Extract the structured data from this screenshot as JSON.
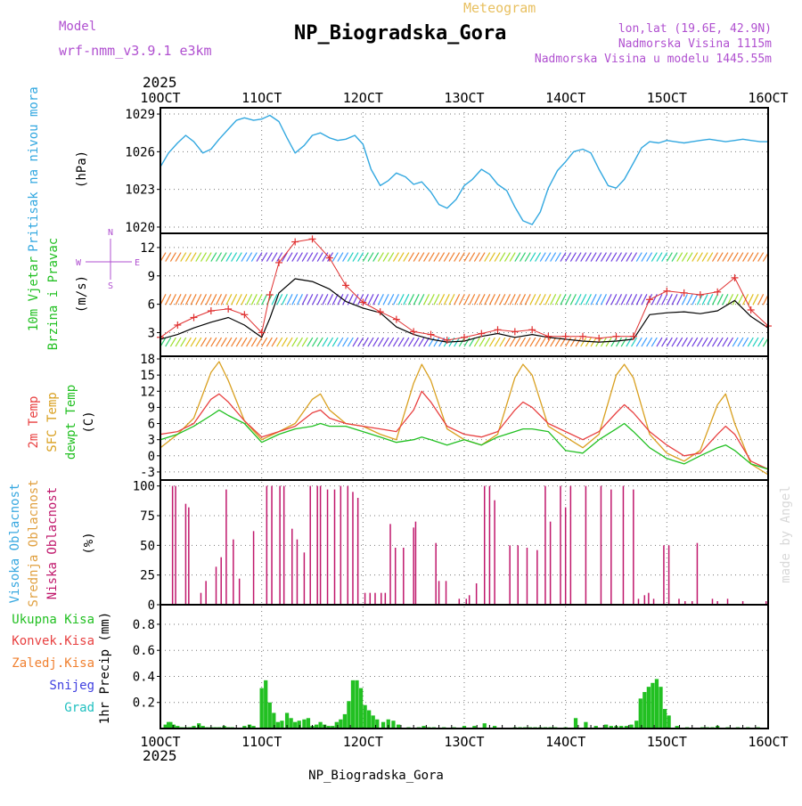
{
  "header": {
    "model_label": "Model",
    "model_name": "wrf-nmm_v3.9.1 e3km",
    "meteogram_label": "Meteogram",
    "station_title": "NP_Biogradska_Gora",
    "coords": "lon,lat (19.6E, 42.9N)",
    "elevation": "Nadmorska Visina 1115m",
    "model_elevation": "Nadmorska Visina u modelu 1445.55m",
    "year_top": "2025",
    "year_bottom": "2025",
    "footer_station": "NP_Biogradska_Gora",
    "credit": "made by Angel"
  },
  "colors": {
    "pressure": "#33a8e0",
    "gust": "#e03030",
    "mean_wind": "#000000",
    "temp2m": "#e84040",
    "sfc_temp": "#d9a020",
    "dewpoint": "#22c022",
    "low_cloud": "#c0186c",
    "mid_cloud": "#e0a040",
    "high_cloud": "#38a8e0",
    "precip": "#22c022",
    "purple_text": "#b050d0",
    "orange_text": "#e8c060",
    "grid": "#777777"
  },
  "chart_data": [
    {
      "type": "line",
      "panel": "pressure",
      "title": "Pritisak na nivou mora",
      "ylabel": "(hPa)",
      "x_ticks": [
        "10OCT",
        "11OCT",
        "12OCT",
        "13OCT",
        "14OCT",
        "15OCT",
        "16OCT"
      ],
      "x_range_days": [
        0,
        6
      ],
      "ylim": [
        1019.5,
        1029.5
      ],
      "y_ticks": [
        1020,
        1023,
        1026,
        1029
      ],
      "series": [
        {
          "name": "Pritisak na nivou mora",
          "x": [
            0,
            0.08,
            0.17,
            0.25,
            0.33,
            0.42,
            0.5,
            0.58,
            0.67,
            0.75,
            0.83,
            0.92,
            1.0,
            1.08,
            1.17,
            1.25,
            1.33,
            1.42,
            1.5,
            1.58,
            1.67,
            1.75,
            1.83,
            1.92,
            2.0,
            2.08,
            2.17,
            2.25,
            2.33,
            2.42,
            2.5,
            2.58,
            2.67,
            2.75,
            2.83,
            2.92,
            3.0,
            3.08,
            3.17,
            3.25,
            3.33,
            3.42,
            3.5,
            3.58,
            3.67,
            3.75,
            3.83,
            3.92,
            4.0,
            4.08,
            4.17,
            4.25,
            4.33,
            4.42,
            4.5,
            4.58,
            4.67,
            4.75,
            4.83,
            4.92,
            5.0,
            5.08,
            5.17,
            5.25,
            5.33,
            5.42,
            5.5,
            5.58,
            5.67,
            5.75,
            5.83,
            5.92,
            6.0
          ],
          "values": [
            1024.8,
            1025.9,
            1026.7,
            1027.3,
            1026.8,
            1025.9,
            1026.2,
            1027.0,
            1027.8,
            1028.5,
            1028.7,
            1028.5,
            1028.6,
            1028.9,
            1028.4,
            1027.1,
            1025.9,
            1026.5,
            1027.3,
            1027.5,
            1027.1,
            1026.9,
            1027.0,
            1027.3,
            1026.6,
            1024.6,
            1023.3,
            1023.7,
            1024.3,
            1024.0,
            1023.4,
            1023.6,
            1022.8,
            1021.8,
            1021.5,
            1022.2,
            1023.3,
            1023.8,
            1024.6,
            1024.2,
            1023.4,
            1022.9,
            1021.6,
            1020.5,
            1020.2,
            1021.2,
            1023.1,
            1024.5,
            1025.2,
            1026.0,
            1026.2,
            1025.9,
            1024.6,
            1023.3,
            1023.1,
            1023.8,
            1025.1,
            1026.3,
            1026.8,
            1026.7,
            1026.9,
            1026.8,
            1026.7,
            1026.8,
            1026.9,
            1027.0,
            1026.9,
            1026.8,
            1026.9,
            1027.0,
            1026.9,
            1026.8,
            1026.8
          ]
        }
      ]
    },
    {
      "type": "line",
      "panel": "wind",
      "title": "10m Vjetar",
      "subtitle": "Brzina i Pravac",
      "ylabel": "(m/s)",
      "compass": {
        "n": "N",
        "s": "S",
        "w": "W",
        "e": "E"
      },
      "ylim": [
        0.5,
        13.5
      ],
      "y_ticks": [
        3,
        6,
        9,
        12
      ],
      "direction_rows_ms": [
        2,
        6.5,
        11
      ],
      "x": [
        0,
        0.17,
        0.33,
        0.5,
        0.67,
        0.83,
        1.0,
        1.08,
        1.17,
        1.33,
        1.5,
        1.67,
        1.83,
        2.0,
        2.17,
        2.33,
        2.5,
        2.67,
        2.83,
        3.0,
        3.17,
        3.33,
        3.5,
        3.67,
        3.83,
        4.0,
        4.17,
        4.33,
        4.5,
        4.67,
        4.83,
        5.0,
        5.17,
        5.33,
        5.5,
        5.67,
        5.83,
        6.0
      ],
      "series": [
        {
          "name": "mean wind",
          "values": [
            2.3,
            2.8,
            3.5,
            4.1,
            4.6,
            3.8,
            2.5,
            4.5,
            7.2,
            8.7,
            8.4,
            7.6,
            6.3,
            5.6,
            5.1,
            3.6,
            2.8,
            2.3,
            2.0,
            2.1,
            2.6,
            2.9,
            2.5,
            2.8,
            2.5,
            2.3,
            2.1,
            2.0,
            2.1,
            2.3,
            4.9,
            5.1,
            5.2,
            5.0,
            5.3,
            6.4,
            4.7,
            3.5
          ]
        },
        {
          "name": "gust",
          "values": [
            2.5,
            3.8,
            4.6,
            5.3,
            5.5,
            4.9,
            3.0,
            7.0,
            10.4,
            12.6,
            12.9,
            10.9,
            8.0,
            6.2,
            5.2,
            4.4,
            3.1,
            2.8,
            2.2,
            2.5,
            2.9,
            3.3,
            3.1,
            3.3,
            2.6,
            2.6,
            2.6,
            2.4,
            2.6,
            2.6,
            6.5,
            7.4,
            7.2,
            7.0,
            7.3,
            8.8,
            5.4,
            3.7
          ]
        }
      ]
    },
    {
      "type": "line",
      "panel": "temperature",
      "labels": [
        "2m Temp",
        "SFC Temp",
        "dewpt Temp"
      ],
      "ylabel": "(C)",
      "ylim": [
        -4.5,
        18.5
      ],
      "y_ticks": [
        -3,
        0,
        3,
        6,
        9,
        12,
        15,
        18
      ],
      "x": [
        0,
        0.17,
        0.33,
        0.5,
        0.58,
        0.67,
        0.83,
        1.0,
        1.17,
        1.33,
        1.5,
        1.58,
        1.67,
        1.83,
        2.0,
        2.17,
        2.33,
        2.5,
        2.58,
        2.67,
        2.83,
        3.0,
        3.17,
        3.33,
        3.5,
        3.58,
        3.67,
        3.83,
        4.0,
        4.17,
        4.33,
        4.5,
        4.58,
        4.67,
        4.83,
        5.0,
        5.17,
        5.33,
        5.5,
        5.58,
        5.67,
        5.83,
        6.0
      ],
      "series": [
        {
          "name": "2m Temp",
          "values": [
            4.0,
            4.5,
            6.0,
            10.5,
            11.5,
            10.0,
            6.5,
            3.5,
            4.5,
            5.5,
            8.0,
            8.5,
            7.0,
            6.0,
            5.5,
            5.0,
            4.5,
            8.5,
            12.0,
            10.0,
            5.5,
            4.0,
            3.5,
            4.5,
            8.5,
            10.0,
            9.0,
            6.0,
            4.5,
            3.0,
            4.5,
            8.0,
            9.5,
            8.0,
            4.5,
            2.0,
            0.0,
            0.5,
            4.0,
            5.5,
            4.0,
            -1.0,
            -2.5
          ]
        },
        {
          "name": "SFC Temp",
          "values": [
            1.5,
            4.0,
            7.0,
            15.5,
            17.5,
            14.0,
            6.5,
            3.0,
            4.5,
            6.0,
            10.5,
            11.5,
            8.5,
            6.0,
            5.5,
            4.0,
            3.0,
            13.5,
            17.0,
            14.0,
            5.0,
            3.0,
            2.0,
            4.0,
            14.5,
            17.0,
            15.0,
            5.5,
            3.5,
            1.5,
            4.0,
            15.0,
            17.0,
            14.5,
            4.0,
            0.5,
            -1.0,
            1.0,
            9.5,
            11.5,
            6.0,
            -1.5,
            -3.5
          ]
        },
        {
          "name": "dewpt Temp",
          "values": [
            3.0,
            4.0,
            5.5,
            7.5,
            8.5,
            7.5,
            6.0,
            2.5,
            4.0,
            5.0,
            5.5,
            6.0,
            5.5,
            5.5,
            4.5,
            3.5,
            2.5,
            3.0,
            3.5,
            3.0,
            2.0,
            3.0,
            2.0,
            3.5,
            4.5,
            5.0,
            5.0,
            4.5,
            1.0,
            0.5,
            3.0,
            5.0,
            6.0,
            4.5,
            1.5,
            -0.5,
            -1.5,
            0.0,
            1.5,
            2.0,
            1.0,
            -1.5,
            -2.5
          ]
        }
      ]
    },
    {
      "type": "bar",
      "panel": "clouds",
      "labels": [
        "Visoka Oblacnost",
        "Srednja Oblacnost",
        "Niska Oblacnost"
      ],
      "ylabel": "(%)",
      "ylim": [
        0,
        105
      ],
      "y_ticks": [
        0,
        25,
        50,
        75,
        100
      ],
      "series": [
        {
          "name": "Niska Oblacnost",
          "x": [
            0.12,
            0.15,
            0.25,
            0.28,
            0.4,
            0.45,
            0.55,
            0.6,
            0.65,
            0.72,
            0.78,
            0.92,
            1.05,
            1.1,
            1.18,
            1.22,
            1.3,
            1.35,
            1.42,
            1.48,
            1.55,
            1.58,
            1.65,
            1.72,
            1.78,
            1.85,
            1.9,
            1.95,
            2.02,
            2.07,
            2.12,
            2.18,
            2.22,
            2.27,
            2.32,
            2.4,
            2.5,
            2.52,
            2.72,
            2.75,
            2.82,
            2.95,
            3.02,
            3.05,
            3.12,
            3.2,
            3.25,
            3.3,
            3.45,
            3.53,
            3.62,
            3.72,
            3.8,
            3.85,
            3.95,
            4.0,
            4.05,
            4.2,
            4.35,
            4.45,
            4.57,
            4.67,
            4.72,
            4.78,
            4.82,
            4.87,
            4.97,
            5.02,
            5.12,
            5.18,
            5.25,
            5.3,
            5.45,
            5.5,
            5.6,
            5.75,
            5.98
          ],
          "values": [
            100,
            100,
            85,
            82,
            10,
            20,
            32,
            40,
            97,
            55,
            22,
            62,
            100,
            100,
            100,
            100,
            64,
            55,
            44,
            100,
            100,
            100,
            97,
            97,
            100,
            100,
            95,
            90,
            10,
            10,
            10,
            10,
            10,
            68,
            48,
            48,
            65,
            70,
            52,
            20,
            20,
            5,
            5,
            8,
            18,
            100,
            100,
            88,
            50,
            50,
            48,
            46,
            100,
            70,
            100,
            82,
            100,
            100,
            100,
            97,
            100,
            97,
            5,
            8,
            10,
            5,
            50,
            50,
            5,
            3,
            3,
            52,
            5,
            3,
            5,
            3,
            3
          ]
        }
      ]
    },
    {
      "type": "bar",
      "panel": "precip",
      "labels": [
        "Ukupna Kisa",
        "Konvek.Kisa",
        "Zaledj.Kisa",
        "Snijeg",
        "Grad"
      ],
      "ylabel": "1hr Precip (mm)",
      "ylim": [
        0,
        0.95
      ],
      "y_ticks": [
        0.2,
        0.4,
        0.6,
        0.8
      ],
      "series": [
        {
          "name": "Ukupna Kisa",
          "x": [
            0.05,
            0.08,
            0.1,
            0.13,
            0.17,
            0.21,
            0.25,
            0.29,
            0.33,
            0.38,
            0.42,
            0.46,
            0.5,
            0.54,
            0.58,
            0.63,
            0.67,
            0.71,
            0.75,
            0.79,
            0.83,
            0.88,
            0.92,
            0.96,
            1.0,
            1.04,
            1.08,
            1.12,
            1.16,
            1.2,
            1.25,
            1.29,
            1.33,
            1.37,
            1.42,
            1.46,
            1.5,
            1.54,
            1.58,
            1.62,
            1.66,
            1.7,
            1.74,
            1.78,
            1.82,
            1.86,
            1.9,
            1.94,
            1.98,
            2.02,
            2.06,
            2.1,
            2.14,
            2.2,
            2.25,
            2.3,
            2.35,
            2.45,
            2.55,
            2.6,
            2.65,
            2.7,
            2.8,
            2.9,
            3.0,
            3.1,
            3.2,
            3.3,
            3.5,
            3.55,
            3.6,
            3.65,
            3.7,
            3.75,
            3.8,
            3.85,
            3.9,
            4.0,
            4.1,
            4.2,
            4.3,
            4.4,
            4.45,
            4.5,
            4.55,
            4.6,
            4.65,
            4.7,
            4.74,
            4.78,
            4.82,
            4.86,
            4.9,
            4.94,
            4.98,
            5.02,
            5.1,
            5.2,
            5.35,
            5.4,
            5.45,
            5.5,
            5.6,
            5.7,
            5.8,
            5.9
          ],
          "values": [
            0.03,
            0.05,
            0.05,
            0.03,
            0.02,
            0.01,
            0.01,
            0.01,
            0.02,
            0.04,
            0.02,
            0.01,
            0.01,
            0.01,
            0.01,
            0.02,
            0.01,
            0.01,
            0.0,
            0.0,
            0.02,
            0.03,
            0.02,
            0.0,
            0.31,
            0.37,
            0.2,
            0.12,
            0.05,
            0.06,
            0.12,
            0.08,
            0.05,
            0.06,
            0.07,
            0.08,
            0.02,
            0.03,
            0.05,
            0.03,
            0.02,
            0.02,
            0.05,
            0.07,
            0.11,
            0.21,
            0.37,
            0.37,
            0.31,
            0.18,
            0.14,
            0.1,
            0.07,
            0.05,
            0.07,
            0.06,
            0.03,
            0.01,
            0.01,
            0.02,
            0.01,
            0.01,
            0.01,
            0.01,
            0.02,
            0.02,
            0.04,
            0.02,
            0.01,
            0.01,
            0.01,
            0.01,
            0.01,
            0.01,
            0.01,
            0.01,
            0.01,
            0.01,
            0.08,
            0.05,
            0.02,
            0.03,
            0.02,
            0.02,
            0.02,
            0.02,
            0.03,
            0.06,
            0.23,
            0.28,
            0.32,
            0.35,
            0.38,
            0.32,
            0.15,
            0.1,
            0.02,
            0.01,
            0.01,
            0.01,
            0.01,
            0.02,
            0.01,
            0.01,
            0.01,
            0.01
          ]
        }
      ]
    }
  ]
}
